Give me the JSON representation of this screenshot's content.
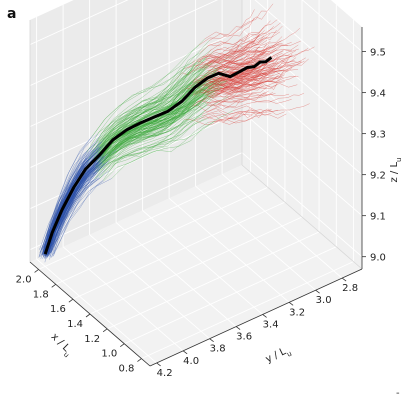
{
  "panel_label": "a",
  "corner_mark": "-",
  "chart_data": {
    "type": "scatter",
    "projection": "3d",
    "grid": true,
    "legend": "none",
    "title": "",
    "axes": {
      "x": {
        "label": "x / L",
        "label_subscript": "u",
        "range": [
          0.7,
          2.1
        ],
        "ticks": [
          "2.0",
          "1.8",
          "1.6",
          "1.4",
          "1.2",
          "1.0",
          "0.8"
        ]
      },
      "y": {
        "label": "y / L",
        "label_subscript": "u",
        "range": [
          2.65,
          4.25
        ],
        "ticks": [
          "2.8",
          "3.0",
          "3.2",
          "3.4",
          "3.6",
          "3.8",
          "4.0",
          "4.2"
        ]
      },
      "z": {
        "label": "z / L",
        "label_subscript": "u",
        "range": [
          8.97,
          9.56
        ],
        "ticks": [
          "9.0",
          "9.1",
          "9.2",
          "9.3",
          "9.4",
          "9.5"
        ]
      }
    },
    "colors": {
      "early": "#2b4fa8",
      "middle": "#3aa83a",
      "late": "#d63a34",
      "mean": "#000000"
    },
    "series": [
      {
        "role": "mean-trajectory",
        "x": [
          2.0,
          1.98,
          1.96,
          1.93,
          1.9,
          1.86,
          1.83,
          1.79,
          1.76,
          1.72,
          1.68,
          1.64,
          1.6,
          1.56,
          1.52,
          1.48,
          1.45,
          1.42,
          1.4,
          1.38,
          1.36,
          1.34
        ],
        "y": [
          4.2,
          4.16,
          4.1,
          4.03,
          3.96,
          3.88,
          3.8,
          3.72,
          3.64,
          3.56,
          3.48,
          3.4,
          3.33,
          3.26,
          3.2,
          3.14,
          3.09,
          3.05,
          3.01,
          2.98,
          2.95,
          2.92
        ],
        "z": [
          9.0,
          9.05,
          9.1,
          9.15,
          9.19,
          9.22,
          9.25,
          9.27,
          9.28,
          9.29,
          9.3,
          9.32,
          9.35,
          9.37,
          9.38,
          9.37,
          9.38,
          9.39,
          9.39,
          9.4,
          9.4,
          9.41
        ]
      }
    ]
  }
}
